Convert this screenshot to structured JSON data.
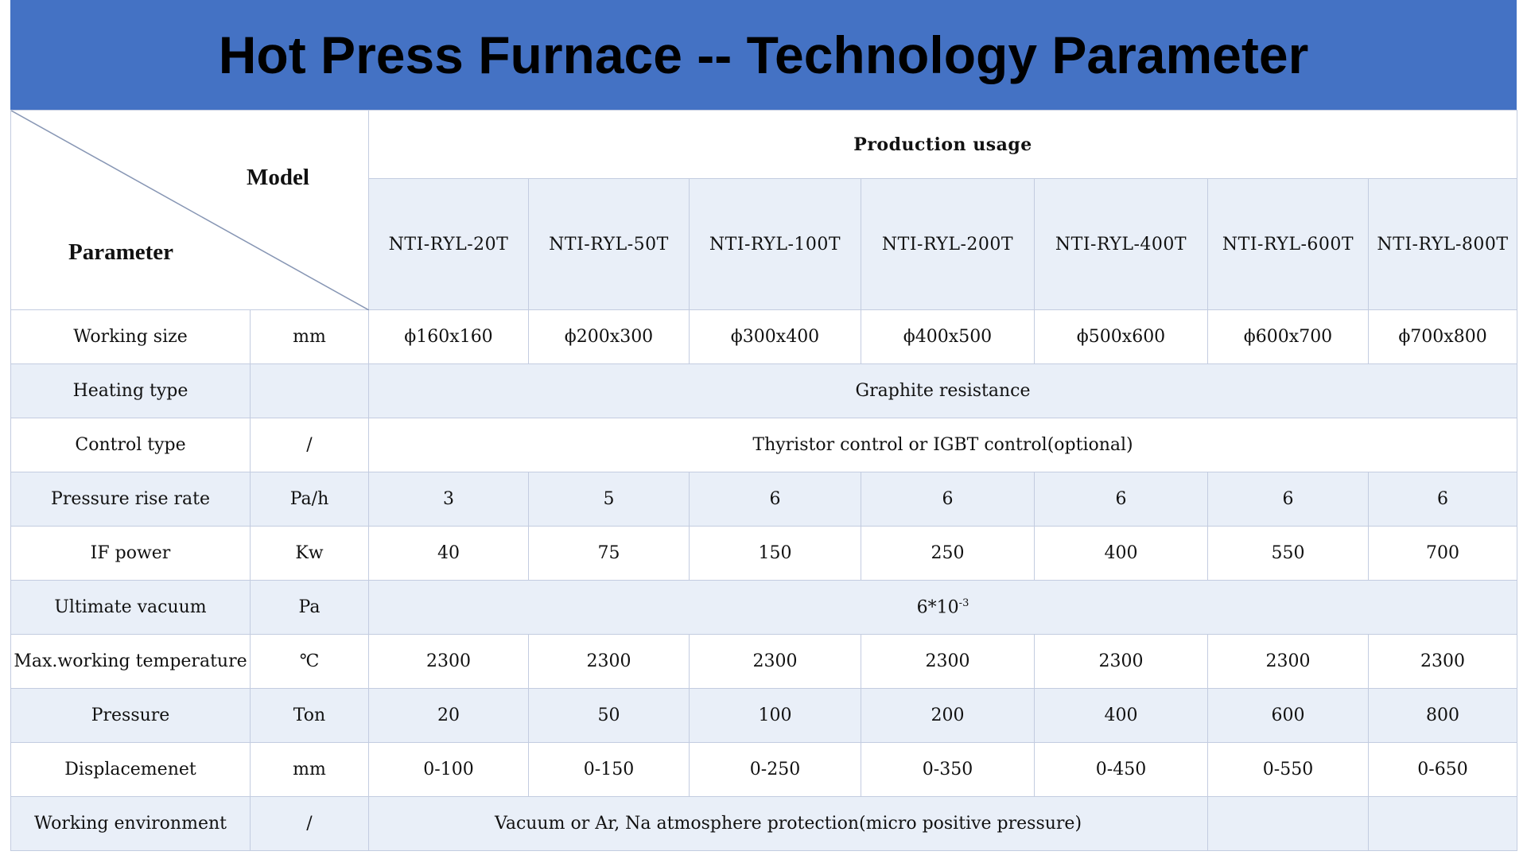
{
  "header": {
    "title": "Hot Press Furnace -- Technology Parameter"
  },
  "table": {
    "corner_top": "Model",
    "corner_bottom": "Parameter",
    "group_header": "Production usage",
    "models": [
      "NTI-RYL-20T",
      "NTI-RYL-50T",
      "NTI-RYL-100T",
      "NTI-RYL-200T",
      "NTI-RYL-400T",
      "NTI-RYL-600T",
      "NTI-RYL-800T"
    ],
    "rows": [
      {
        "parameter": "Working size",
        "unit": "mm",
        "values": [
          "ϕ160x160",
          "ϕ200x300",
          "ϕ300x400",
          "ϕ400x500",
          "ϕ500x600",
          "ϕ600x700",
          "ϕ700x800"
        ]
      },
      {
        "parameter": "Heating type",
        "values": [
          "Graphite resistance"
        ]
      },
      {
        "parameter": "Control type",
        "unit": "/",
        "values": [
          "Thyristor control or IGBT control(optional)"
        ]
      },
      {
        "parameter": "Pressure rise rate",
        "unit": "Pa/h",
        "values": [
          3,
          5,
          6,
          6,
          6,
          6,
          6
        ]
      },
      {
        "parameter": "IF power",
        "unit": "Kw",
        "values": [
          40,
          75,
          150,
          250,
          400,
          550,
          700
        ]
      },
      {
        "parameter": "Ultimate vacuum",
        "unit": "Pa",
        "values": [
          {
            "text": "6*10",
            "superscript": "-3"
          }
        ]
      },
      {
        "parameter": "Max.working temperature",
        "unit": "℃",
        "values": [
          2300,
          2300,
          2300,
          2300,
          2300,
          2300,
          2300
        ]
      },
      {
        "parameter": "Pressure",
        "unit": "Ton",
        "values": [
          20,
          50,
          100,
          200,
          400,
          600,
          800
        ]
      },
      {
        "parameter": "Displacemenet",
        "unit": "mm",
        "values": [
          "0-100",
          "0-150",
          "0-250",
          "0-350",
          "0-450",
          "0-550",
          "0-650"
        ]
      },
      {
        "parameter": "Working environment",
        "unit": "/",
        "values": [
          "Vacuum or Ar, Na atmosphere protection(micro positive pressure)"
        ]
      }
    ]
  }
}
